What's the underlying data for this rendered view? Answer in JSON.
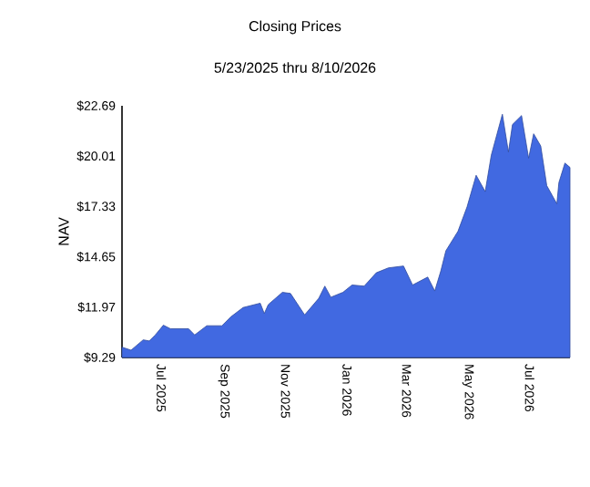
{
  "chart_data": {
    "type": "area",
    "title": "Closing Prices",
    "subtitle": "5/23/2025 thru 8/10/2026",
    "ylabel": "NAV",
    "x": [
      "2025-05-23",
      "2025-06-01",
      "2025-06-13",
      "2025-06-19",
      "2025-06-25",
      "2025-07-03",
      "2025-07-10",
      "2025-07-28",
      "2025-08-03",
      "2025-08-15",
      "2025-08-30",
      "2025-09-08",
      "2025-09-20",
      "2025-10-07",
      "2025-10-11",
      "2025-10-15",
      "2025-10-29",
      "2025-11-06",
      "2025-11-20",
      "2025-12-04",
      "2025-12-10",
      "2025-12-16",
      "2025-12-28",
      "2026-01-06",
      "2026-01-18",
      "2026-01-30",
      "2026-02-11",
      "2026-02-26",
      "2026-03-07",
      "2026-03-22",
      "2026-03-29",
      "2026-04-04",
      "2026-04-09",
      "2026-04-21",
      "2026-04-30",
      "2026-05-09",
      "2026-05-18",
      "2026-05-24",
      "2026-06-04",
      "2026-06-10",
      "2026-06-14",
      "2026-06-23",
      "2026-06-30",
      "2026-07-05",
      "2026-07-12",
      "2026-07-18",
      "2026-07-28",
      "2026-07-30",
      "2026-08-05",
      "2026-08-10"
    ],
    "values": [
      9.84,
      9.68,
      10.23,
      10.17,
      10.49,
      11.01,
      10.82,
      10.82,
      10.49,
      10.98,
      10.98,
      11.46,
      11.95,
      12.18,
      11.63,
      12.11,
      12.76,
      12.7,
      11.56,
      12.44,
      13.09,
      12.5,
      12.76,
      13.15,
      13.09,
      13.8,
      14.06,
      14.16,
      13.15,
      13.57,
      12.83,
      13.9,
      14.97,
      16.01,
      17.31,
      18.99,
      18.12,
      20.06,
      22.24,
      20.23,
      21.69,
      22.17,
      19.9,
      21.2,
      20.55,
      18.44,
      17.47,
      18.6,
      19.64,
      19.41
    ],
    "color": "#4169e1",
    "xlim": [
      "2025-05-23",
      "2026-08-10"
    ],
    "xticks": [
      {
        "value": "2025-07-01",
        "label": "Jul  2025"
      },
      {
        "value": "2025-09-01",
        "label": "Sep  2025"
      },
      {
        "value": "2025-11-01",
        "label": "Nov  2025"
      },
      {
        "value": "2026-01-01",
        "label": "Jan  2026"
      },
      {
        "value": "2026-03-01",
        "label": "Mar  2026"
      },
      {
        "value": "2026-05-01",
        "label": "May  2026"
      },
      {
        "value": "2026-07-01",
        "label": "Jul  2026"
      }
    ],
    "ylim": [
      9.29,
      22.69
    ],
    "yticks": [
      {
        "value": 9.29,
        "label": "$9.29"
      },
      {
        "value": 11.97,
        "label": "$11.97"
      },
      {
        "value": 14.65,
        "label": "$14.65"
      },
      {
        "value": 17.33,
        "label": "$17.33"
      },
      {
        "value": 20.01,
        "label": "$20.01"
      },
      {
        "value": 22.69,
        "label": "$22.69"
      }
    ]
  }
}
